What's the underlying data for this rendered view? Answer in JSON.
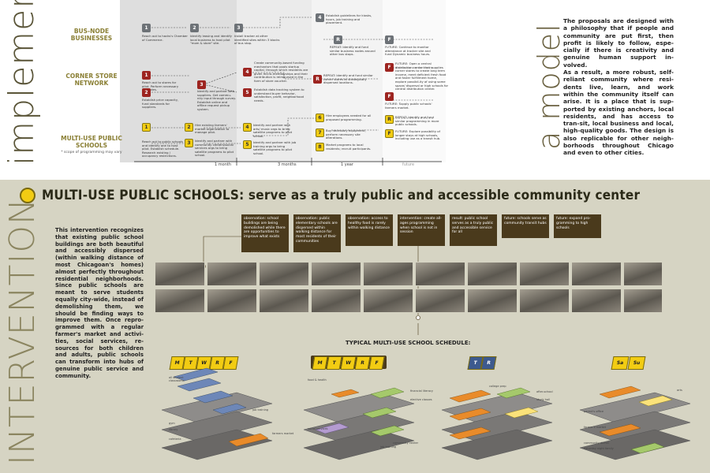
{
  "implement": {
    "vertical_title": "implement",
    "model_title": "a model",
    "rows": [
      {
        "label": "BUS-NODE BUSINESSES",
        "sub": ""
      },
      {
        "label": "CORNER STORE NETWORK",
        "sub": ""
      },
      {
        "label": "MULTI-USE PUBLIC SCHOOLS",
        "sub": "* scope of programming may vary"
      }
    ],
    "timeline": [
      "1 month",
      "3 months",
      "1 year",
      "future"
    ],
    "nodes": [
      {
        "id": "bus1",
        "num": "1",
        "text": "Reach out to hacks's Chamber of Commerce."
      },
      {
        "id": "bus2",
        "num": "2",
        "text": "Identify leasing and identify local business to host pilot \"mom & store\" site."
      },
      {
        "id": "bus3",
        "num": "3",
        "text": "Install tracker at other identified sites within 3 blocks of bus stop."
      },
      {
        "id": "bus4",
        "num": "4",
        "text": "Establish guidelines for kiosks, hours, job training and placement."
      },
      {
        "id": "busR",
        "num": "R",
        "text": "REPEAT: Identify and fund similar business nodes around other bus stops."
      },
      {
        "id": "busF",
        "num": "F",
        "text": "FUTURE: Continue to monitor attendance at tracker site and fund Dynamic business hours."
      },
      {
        "id": "cs1",
        "num": "1",
        "text": "Reach out to stores for pilot. Perform necessary upgrades."
      },
      {
        "id": "cs2",
        "num": "2",
        "text": "Establish price capacity, fund standards for suppliers."
      },
      {
        "id": "cs3",
        "num": "3",
        "text": "Identify and partner with suppliers. Get commu-nity input through survey. Establish online and offline request pickup system."
      },
      {
        "id": "cs4",
        "num": "4",
        "text": "Create community-based funding mechanism that pools startup capital, through which residents are given micro-memberships and their contribution is reimbursed in the form of store voucher."
      },
      {
        "id": "cs5",
        "num": "5",
        "text": "Establish data tracking system to understand buyer behavior, satisfaction, profit, neighborhood needs."
      },
      {
        "id": "csR",
        "num": "R",
        "text": "REPEAT: Identify and fund similar corner stores at strategically dispersed locations."
      },
      {
        "id": "csF1",
        "num": "F",
        "text": "FUTURE: Open a central distribution center that supplies corner stores to create long term income, meet deficient fresh food and foster fulfillment home, explore possibil-ity of using some space/ dispersal or high schools for central distribution center."
      },
      {
        "id": "csF2",
        "num": "F",
        "text": "FUTURE: Supply public schools' farmers market."
      },
      {
        "id": "ms1",
        "num": "1",
        "text": "Reach out to public schools and identify one to host pilot. Establish schedule. Research existing / occupancy restrictions."
      },
      {
        "id": "ms2",
        "num": "2",
        "text": "Hire existing farmers' market organization to manage pilot."
      },
      {
        "id": "ms3",
        "num": "3",
        "text": "Identify and partner with community centers/social services orgs to bring satellite programs to pilot school."
      },
      {
        "id": "ms4",
        "num": "4",
        "text": "Identify and partner with arts/ music orgs to bring satellite programs to pilot school."
      },
      {
        "id": "ms5",
        "num": "5",
        "text": "Identify and partner with job training orgs to bring satellite programs to pilot school."
      },
      {
        "id": "ms6",
        "num": "6",
        "text": "Hire employees needed for all proposed programming."
      },
      {
        "id": "ms7",
        "num": "7",
        "text": "Buy necessary equipment, perform necessary site alterations."
      },
      {
        "id": "ms8",
        "num": "8",
        "text": "Market programs to local residents; recruit participants."
      },
      {
        "id": "msR",
        "num": "R",
        "text": "REPEAT: Identify and fund similar programming in more public schools."
      },
      {
        "id": "msF",
        "num": "F",
        "text": "FUTURE: Explore possibility of longer stays at high schools, including use as a transit hub."
      }
    ],
    "right_text": "The proposals are designed with a philosophy that if people and community are put first, then profit is likely to follow, espe-cially if there is creativity and genuine human support in-volved.\nAs a result, a more robust, self-reliant community where resi-dents live, learn, and work within the community itself can arise. It is a place that is sup-ported by existing anchors, local residents, and has access to tran-sit, local business and local, high-quality goods. The design is also replicable for other neigh-borhoods throughout Chicago and even to other cities."
  },
  "intervention": {
    "vertical_title": "INTERVENTION",
    "heading": "MULTI-USE PUBLIC SCHOOLS: serve as a truly public and accessible community center",
    "left_text": "This intervention recognizes that existing public school buildings are both beautiful and accessibly dispersed (within walking distance of most Chicagoan's homes) almost perfectly throughout residential neighborhoods. Since public schools are meant to serve students equally city-wide, instead of demolishing them, we should be finding ways to improve them. Once repro-grammed with a regular farmer's market and activi-ties, social services, re-sources for both children and adults, public schools can transform into hubs of genuine public service and community.",
    "observations": [
      "observation: school buildings are being demolished while there are opportunities to improve what exists",
      "observation: public elementary schools are dispersed within walking distance for most residents of their communities",
      "observation: access to healthy food is rarely within walking distance",
      "intervention: create all-ages programming when school is not in session",
      "result: public school serves as a truly public and accessible service for all",
      "future: schools serve as community transit hubs",
      "future: expand pro-gramming to high schools"
    ],
    "schedule_title": "TYPICAL MULTI-USE SCHOOL SCHEDULE:",
    "schedule_groups": [
      {
        "days": [
          "M",
          "T",
          "W",
          "R",
          "F"
        ],
        "style": "yellow"
      },
      {
        "days": [
          "M",
          "T",
          "W",
          "R",
          "F"
        ],
        "style": "yellow-on-dark"
      },
      {
        "days": [
          "T",
          "R"
        ],
        "style": "blue"
      },
      {
        "days": [
          "Sa",
          "Su"
        ],
        "style": "yellow"
      }
    ],
    "diagram_labels": [
      "all student classrooms",
      "job training",
      "gym",
      "library",
      "cafeteria",
      "farmers market",
      "food & health",
      "social services",
      "financial literacy",
      "elective classes",
      "community center",
      "job training",
      "college prep",
      "after-school",
      "study hall",
      "parent's office",
      "arts",
      "farmer's market",
      "community dinner",
      "Saturday night family"
    ]
  },
  "colors": {
    "gold": "#f2cc13",
    "dark_brown": "#4a3a1c",
    "red": "#9d2420",
    "grey_node": "#6d7277",
    "olive": "#8a7f34",
    "beige": "#d6d4c3"
  }
}
